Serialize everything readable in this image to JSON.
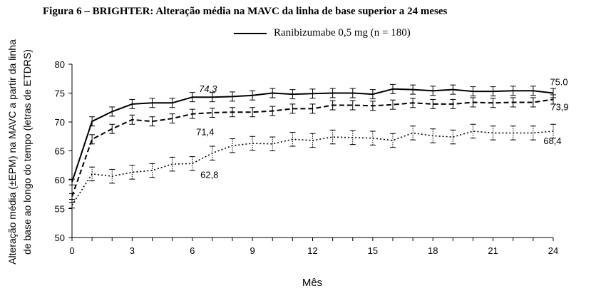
{
  "figure_title": "Figura 6 – BRIGHTER: Alteração média na MAVC da linha de base superior a 24 meses",
  "legend_label": "Ranibizumabe 0,5 mg (n = 180)",
  "chart_data": {
    "type": "line",
    "title": "Figura 6 – BRIGHTER: Alteração média na MAVC da linha de base superior a 24 meses",
    "xlabel": "Mês",
    "ylabel_line1": "Alteração média (±EPM) na MAVC a partir da linha",
    "ylabel_line2": "de base ao longo do tempo (letras de ETDRS)",
    "xlim": [
      0,
      24
    ],
    "ylim": [
      50,
      80
    ],
    "xticks": [
      "0",
      "3",
      "6",
      "9",
      "12",
      "15",
      "18",
      "21",
      "24"
    ],
    "yticks": [
      "50",
      "55",
      "60",
      "65",
      "70",
      "75",
      "80"
    ],
    "grid": false,
    "legend_position": "top-center",
    "x": [
      0,
      1,
      2,
      3,
      4,
      5,
      6,
      7,
      8,
      9,
      10,
      11,
      12,
      13,
      14,
      15,
      16,
      17,
      18,
      19,
      20,
      21,
      22,
      23,
      24
    ],
    "series": [
      {
        "name": "Ranibizumabe 0,5 mg (n = 180)",
        "style": "solid",
        "color": "#000000",
        "values": [
          59.6,
          70.1,
          71.8,
          73.1,
          73.3,
          73.3,
          74.3,
          74.3,
          74.4,
          74.6,
          75.0,
          74.8,
          74.9,
          75.0,
          75.0,
          74.8,
          75.7,
          75.6,
          75.4,
          75.6,
          75.3,
          75.3,
          75.4,
          75.4,
          75.0
        ],
        "errors": [
          0.5,
          0.8,
          0.8,
          0.8,
          0.8,
          0.8,
          0.8,
          0.8,
          0.8,
          0.8,
          0.8,
          0.8,
          0.8,
          0.8,
          0.8,
          0.8,
          0.8,
          0.8,
          0.8,
          0.8,
          0.8,
          0.8,
          0.8,
          0.8,
          0.8
        ]
      },
      {
        "name": "",
        "style": "dashed",
        "color": "#000000",
        "values": [
          57.1,
          67.0,
          68.8,
          70.4,
          70.1,
          70.6,
          71.4,
          71.6,
          71.7,
          71.7,
          71.9,
          72.3,
          72.3,
          72.9,
          72.9,
          72.8,
          73.0,
          73.3,
          73.1,
          73.1,
          73.4,
          73.3,
          73.4,
          73.4,
          73.9
        ],
        "errors": [
          0.5,
          0.8,
          0.8,
          0.8,
          0.8,
          0.8,
          0.8,
          0.8,
          0.8,
          0.8,
          0.8,
          0.8,
          0.8,
          0.8,
          0.8,
          0.8,
          0.8,
          0.8,
          0.8,
          0.8,
          0.8,
          0.8,
          0.8,
          0.8,
          0.8
        ]
      },
      {
        "name": "",
        "style": "dotted",
        "color": "#000000",
        "values": [
          55.6,
          61.0,
          60.6,
          61.3,
          61.6,
          62.7,
          62.8,
          64.6,
          65.9,
          66.3,
          66.2,
          67.0,
          66.8,
          67.4,
          67.3,
          67.2,
          66.8,
          68.1,
          67.6,
          67.4,
          68.4,
          68.1,
          68.1,
          68.1,
          68.4
        ],
        "errors": [
          0.5,
          1.2,
          1.2,
          1.2,
          1.2,
          1.2,
          1.2,
          1.2,
          1.2,
          1.2,
          1.2,
          1.2,
          1.2,
          1.2,
          1.2,
          1.2,
          1.2,
          1.2,
          1.2,
          1.2,
          1.2,
          1.2,
          1.2,
          1.2,
          1.2
        ]
      }
    ],
    "annotations": [
      {
        "text": "74,3",
        "x": 6,
        "y": 74.3,
        "series": 0,
        "style": "italic"
      },
      {
        "text": "75.0",
        "x": 24,
        "y": 75.0,
        "series": 0,
        "style": "normal"
      },
      {
        "text": "71,4",
        "x": 6,
        "y": 71.4,
        "series": 1,
        "style": "normal"
      },
      {
        "text": "73,9",
        "x": 24,
        "y": 73.9,
        "series": 1,
        "style": "normal"
      },
      {
        "text": "62,8",
        "x": 6,
        "y": 62.8,
        "series": 2,
        "style": "normal"
      },
      {
        "text": "68,4",
        "x": 24,
        "y": 68.4,
        "series": 2,
        "style": "normal"
      }
    ]
  }
}
